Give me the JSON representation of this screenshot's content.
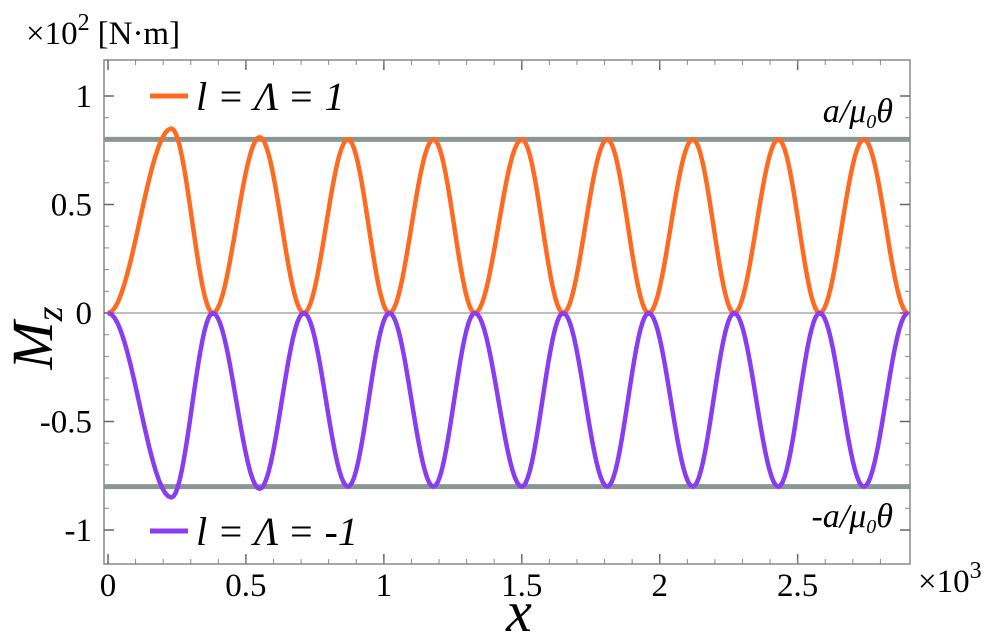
{
  "chart_data": {
    "type": "line",
    "ylabel_main": "M",
    "ylabel_sub": "z",
    "xlabel": "x",
    "y_multiplier": "×10",
    "y_multiplier_exp": "2",
    "y_unit": "[N·m]",
    "x_multiplier": "×10",
    "x_multiplier_exp": "3",
    "xlim": [
      0,
      2.9
    ],
    "ylim": [
      -1.1,
      1.1
    ],
    "x_ticks": [
      0,
      0.5,
      1,
      1.5,
      2,
      2.5
    ],
    "x_tick_labels": [
      "0",
      "0.5",
      "1",
      "1.5",
      "2",
      "2.5"
    ],
    "y_ticks": [
      -1,
      -0.5,
      0,
      0.5,
      1
    ],
    "y_tick_labels": [
      "-1",
      "-0.5",
      "0",
      "0.5",
      "1"
    ],
    "grid": false,
    "series": [
      {
        "name": "l = Λ = 1",
        "color": "#ff6a21",
        "peak_x": [
          0.23,
          0.55,
          0.87,
          1.18,
          1.5,
          1.81,
          2.12,
          2.43,
          2.74
        ],
        "peak_y": [
          0.85,
          0.81,
          0.8,
          0.8,
          0.8,
          0.8,
          0.8,
          0.8,
          0.8
        ],
        "zero_x": [
          0.0,
          0.38,
          0.71,
          1.02,
          1.33,
          1.65,
          1.96,
          2.27,
          2.58,
          2.9
        ]
      },
      {
        "name": "l = Λ = -1",
        "color": "#8a3cf0",
        "peak_x": [
          0.23,
          0.55,
          0.87,
          1.18,
          1.5,
          1.81,
          2.12,
          2.43,
          2.74
        ],
        "peak_y": [
          -0.85,
          -0.81,
          -0.8,
          -0.8,
          -0.8,
          -0.8,
          -0.8,
          -0.8,
          -0.8
        ],
        "zero_x": [
          0.0,
          0.38,
          0.71,
          1.02,
          1.33,
          1.65,
          1.96,
          2.27,
          2.58,
          2.9
        ]
      }
    ],
    "reference_lines": [
      {
        "y": 0.8,
        "label_main": "a/μ",
        "label_sub": "0",
        "label_end": "θ",
        "color": "#8a9694"
      },
      {
        "y": -0.8,
        "label_main": "-a/μ",
        "label_sub": "0",
        "label_end": "θ",
        "color": "#8a9694"
      }
    ],
    "legend": [
      {
        "label": "l = Λ = 1",
        "color": "#ff6a21"
      },
      {
        "label": "l = Λ = -1",
        "color": "#8a3cf0"
      }
    ],
    "legend_placement": "top-left and bottom-left"
  }
}
